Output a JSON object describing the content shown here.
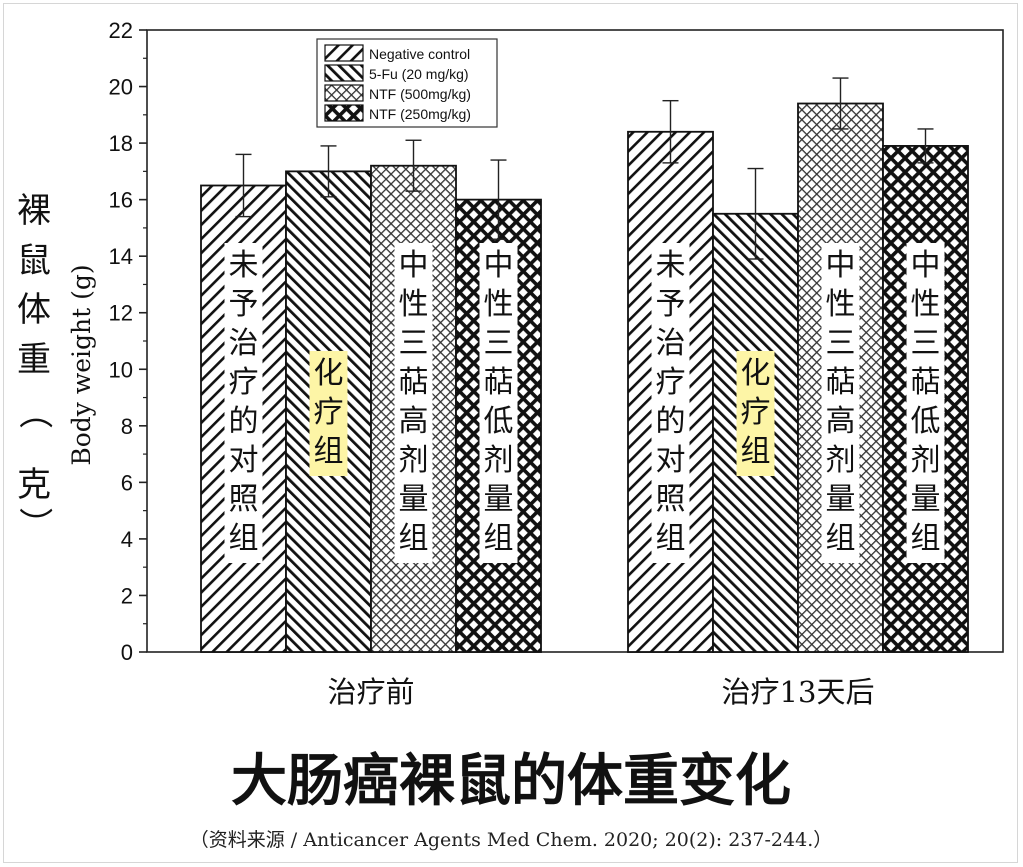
{
  "chart_data": {
    "type": "bar",
    "ylabel": "Body weight (g)",
    "ylabel_cn": [
      "裸",
      "鼠",
      "体",
      "重",
      "（",
      "克",
      "）"
    ],
    "ylim": [
      0,
      22
    ],
    "y_ticks": [
      "0",
      "2",
      "4",
      "6",
      "8",
      "10",
      "12",
      "14",
      "16",
      "18",
      "20",
      "22"
    ],
    "categories": [
      "治疗前",
      "治疗13天后"
    ],
    "series": [
      {
        "name": "Negative control",
        "pattern": "diag-right",
        "values": [
          16.5,
          18.4
        ],
        "errors": [
          1.1,
          1.1
        ]
      },
      {
        "name": "5-Fu (20 mg/kg)",
        "pattern": "diag-left",
        "values": [
          17.0,
          15.5
        ],
        "errors": [
          0.9,
          1.6
        ]
      },
      {
        "name": "NTF (500mg/kg)",
        "pattern": "crosshatch-fine",
        "values": [
          17.2,
          19.4
        ],
        "errors": [
          0.9,
          0.9
        ]
      },
      {
        "name": "NTF (250mg/kg)",
        "pattern": "crosshatch-bold",
        "values": [
          16.0,
          17.9
        ],
        "errors": [
          1.4,
          0.6
        ]
      }
    ],
    "bar_annotations": [
      "未予治疗的对照组",
      "化疗组",
      "中性三萜高剂量组",
      "中性三萜低剂量组"
    ],
    "annotation_highlight": "#fdf5a6",
    "legend_position": "top-left",
    "grid": false
  },
  "caption": {
    "title": "大肠癌裸鼠的体重变化",
    "source": "（资料来源 / Anticancer Agents Med Chem. 2020; 20(2): 237-244.）"
  }
}
